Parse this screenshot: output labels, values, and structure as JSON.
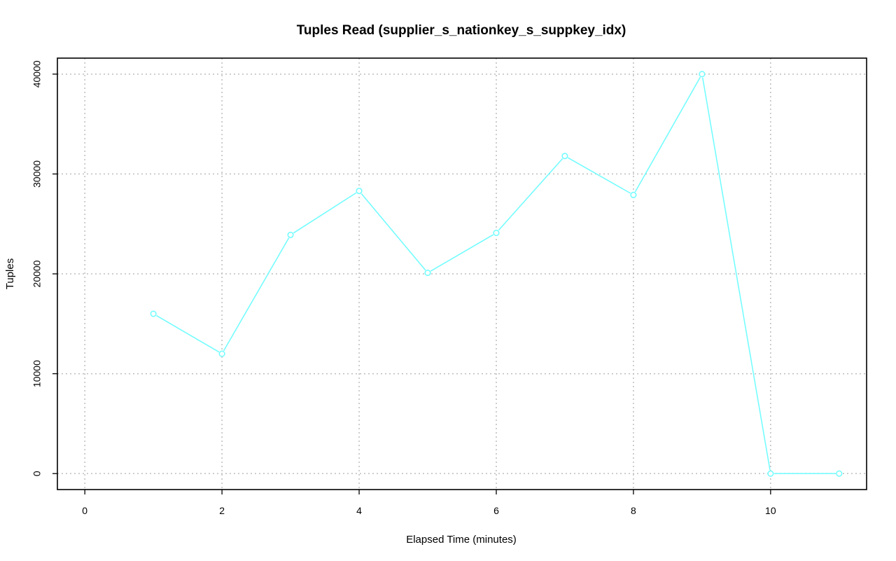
{
  "chart_data": {
    "type": "line",
    "title": "Tuples Read (supplier_s_nationkey_s_suppkey_idx)",
    "xlabel": "Elapsed Time (minutes)",
    "ylabel": "Tuples",
    "xlim": [
      -0.4,
      11.4
    ],
    "ylim": [
      -1600,
      41600
    ],
    "x_ticks": [
      0,
      2,
      4,
      6,
      8,
      10
    ],
    "y_ticks": [
      0,
      10000,
      20000,
      30000,
      40000
    ],
    "grid": true,
    "series": [
      {
        "color": "#6ffcff",
        "marker": "circle",
        "x": [
          1,
          2,
          3,
          4,
          5,
          6,
          7,
          8,
          9,
          10,
          11
        ],
        "y": [
          16000,
          12000,
          23900,
          28300,
          20100,
          24100,
          31800,
          27900,
          40000,
          0,
          0
        ]
      }
    ]
  }
}
